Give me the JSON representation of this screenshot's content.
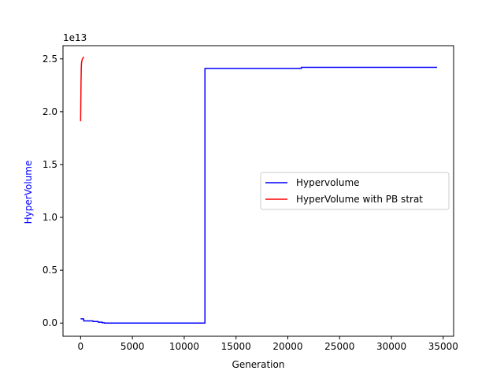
{
  "chart_data": {
    "type": "line",
    "title": "",
    "xlabel": "Generation",
    "ylabel": "HyperVolume",
    "ylabel_color": "#0000ff",
    "y_offset_text": "1e13",
    "xlim": [
      -1700,
      36000
    ],
    "ylim": [
      -0.125,
      2.625
    ],
    "x_ticks": [
      0,
      5000,
      10000,
      15000,
      20000,
      25000,
      30000,
      35000
    ],
    "x_tick_labels": [
      "0",
      "5000",
      "10000",
      "15000",
      "20000",
      "25000",
      "30000",
      "35000"
    ],
    "y_ticks": [
      0.0,
      0.5,
      1.0,
      1.5,
      2.0,
      2.5
    ],
    "y_tick_labels": [
      "0.0",
      "0.5",
      "1.0",
      "1.5",
      "2.0",
      "2.5"
    ],
    "grid": false,
    "legend_position": "center-right",
    "series": [
      {
        "name": "Hypervolume",
        "color": "#0000ff",
        "x": [
          0,
          300,
          300,
          1200,
          1200,
          1700,
          1700,
          2100,
          2100,
          2300,
          2300,
          12000,
          12000,
          21300,
          21300,
          34400
        ],
        "y": [
          0.04,
          0.04,
          0.02,
          0.02,
          0.015,
          0.015,
          0.008,
          0.008,
          0.003,
          0.003,
          0.0,
          0.0,
          2.41,
          2.41,
          2.42,
          2.42
        ]
      },
      {
        "name": "HyperVolume with PB strat",
        "color": "#ff0000",
        "x": [
          0,
          20,
          40,
          60,
          80,
          100,
          120,
          150,
          180,
          210,
          250,
          300
        ],
        "y": [
          1.91,
          2.1,
          2.28,
          2.4,
          2.45,
          2.47,
          2.48,
          2.49,
          2.5,
          2.505,
          2.51,
          2.52
        ]
      }
    ]
  }
}
